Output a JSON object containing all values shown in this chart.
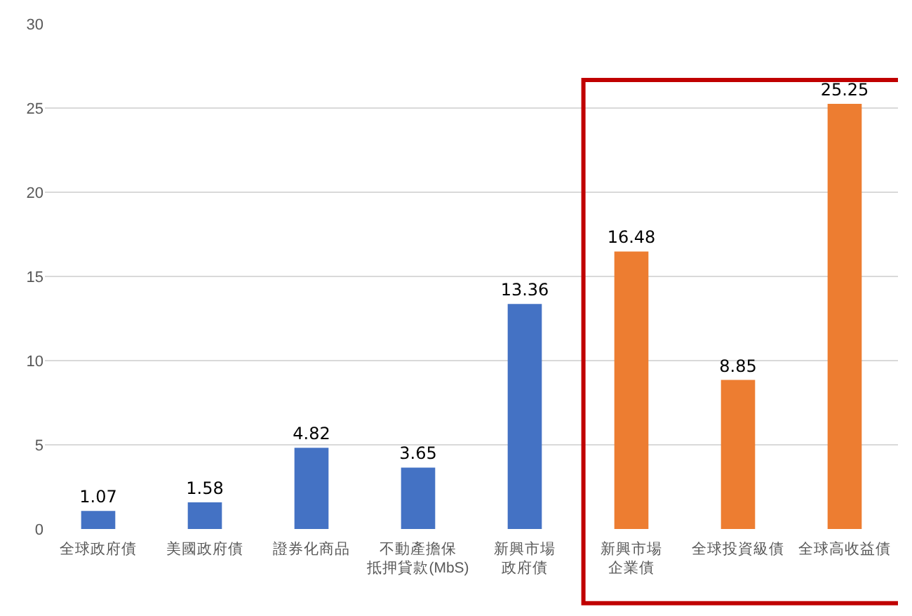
{
  "chart_data": {
    "type": "bar",
    "categories": [
      "全球政府債",
      "美國政府債",
      "證券化商品",
      "不動產擔保抵押貸款(MbS)",
      "新興市場政府債",
      "新興市場企業債",
      "全球投資級債",
      "全球高收益債"
    ],
    "values": [
      1.07,
      1.58,
      4.82,
      3.65,
      13.36,
      16.48,
      8.85,
      25.25
    ],
    "colors": [
      "#4472c4",
      "#4472c4",
      "#4472c4",
      "#4472c4",
      "#4472c4",
      "#ed7d31",
      "#ed7d31",
      "#ed7d31"
    ],
    "ylim": [
      0,
      30
    ],
    "yticks": [
      0,
      5,
      10,
      15,
      20,
      25,
      30
    ],
    "grid": "y",
    "data_labels": true
  }
}
